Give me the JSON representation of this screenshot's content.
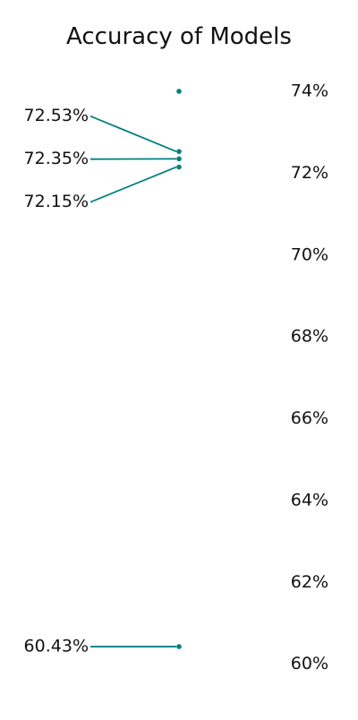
{
  "chart_data": {
    "type": "scatter",
    "title": "Accuracy of Models",
    "xlabel": "",
    "ylabel": "",
    "y_axis_side": "right",
    "y_tick_values": [
      60,
      62,
      64,
      66,
      68,
      70,
      72,
      74
    ],
    "y_tick_labels": [
      "60%",
      "62%",
      "64%",
      "66%",
      "68%",
      "70%",
      "72%",
      "74%"
    ],
    "ylim": [
      59.6,
      74.7
    ],
    "grid": false,
    "legend": "none",
    "color": "#008080",
    "points": [
      {
        "y": 74.0,
        "label": ""
      },
      {
        "y": 72.53,
        "label": "72.53%"
      },
      {
        "y": 72.35,
        "label": "72.35%"
      },
      {
        "y": 72.15,
        "label": "72.15%"
      },
      {
        "y": 60.43,
        "label": "60.43%"
      }
    ]
  }
}
